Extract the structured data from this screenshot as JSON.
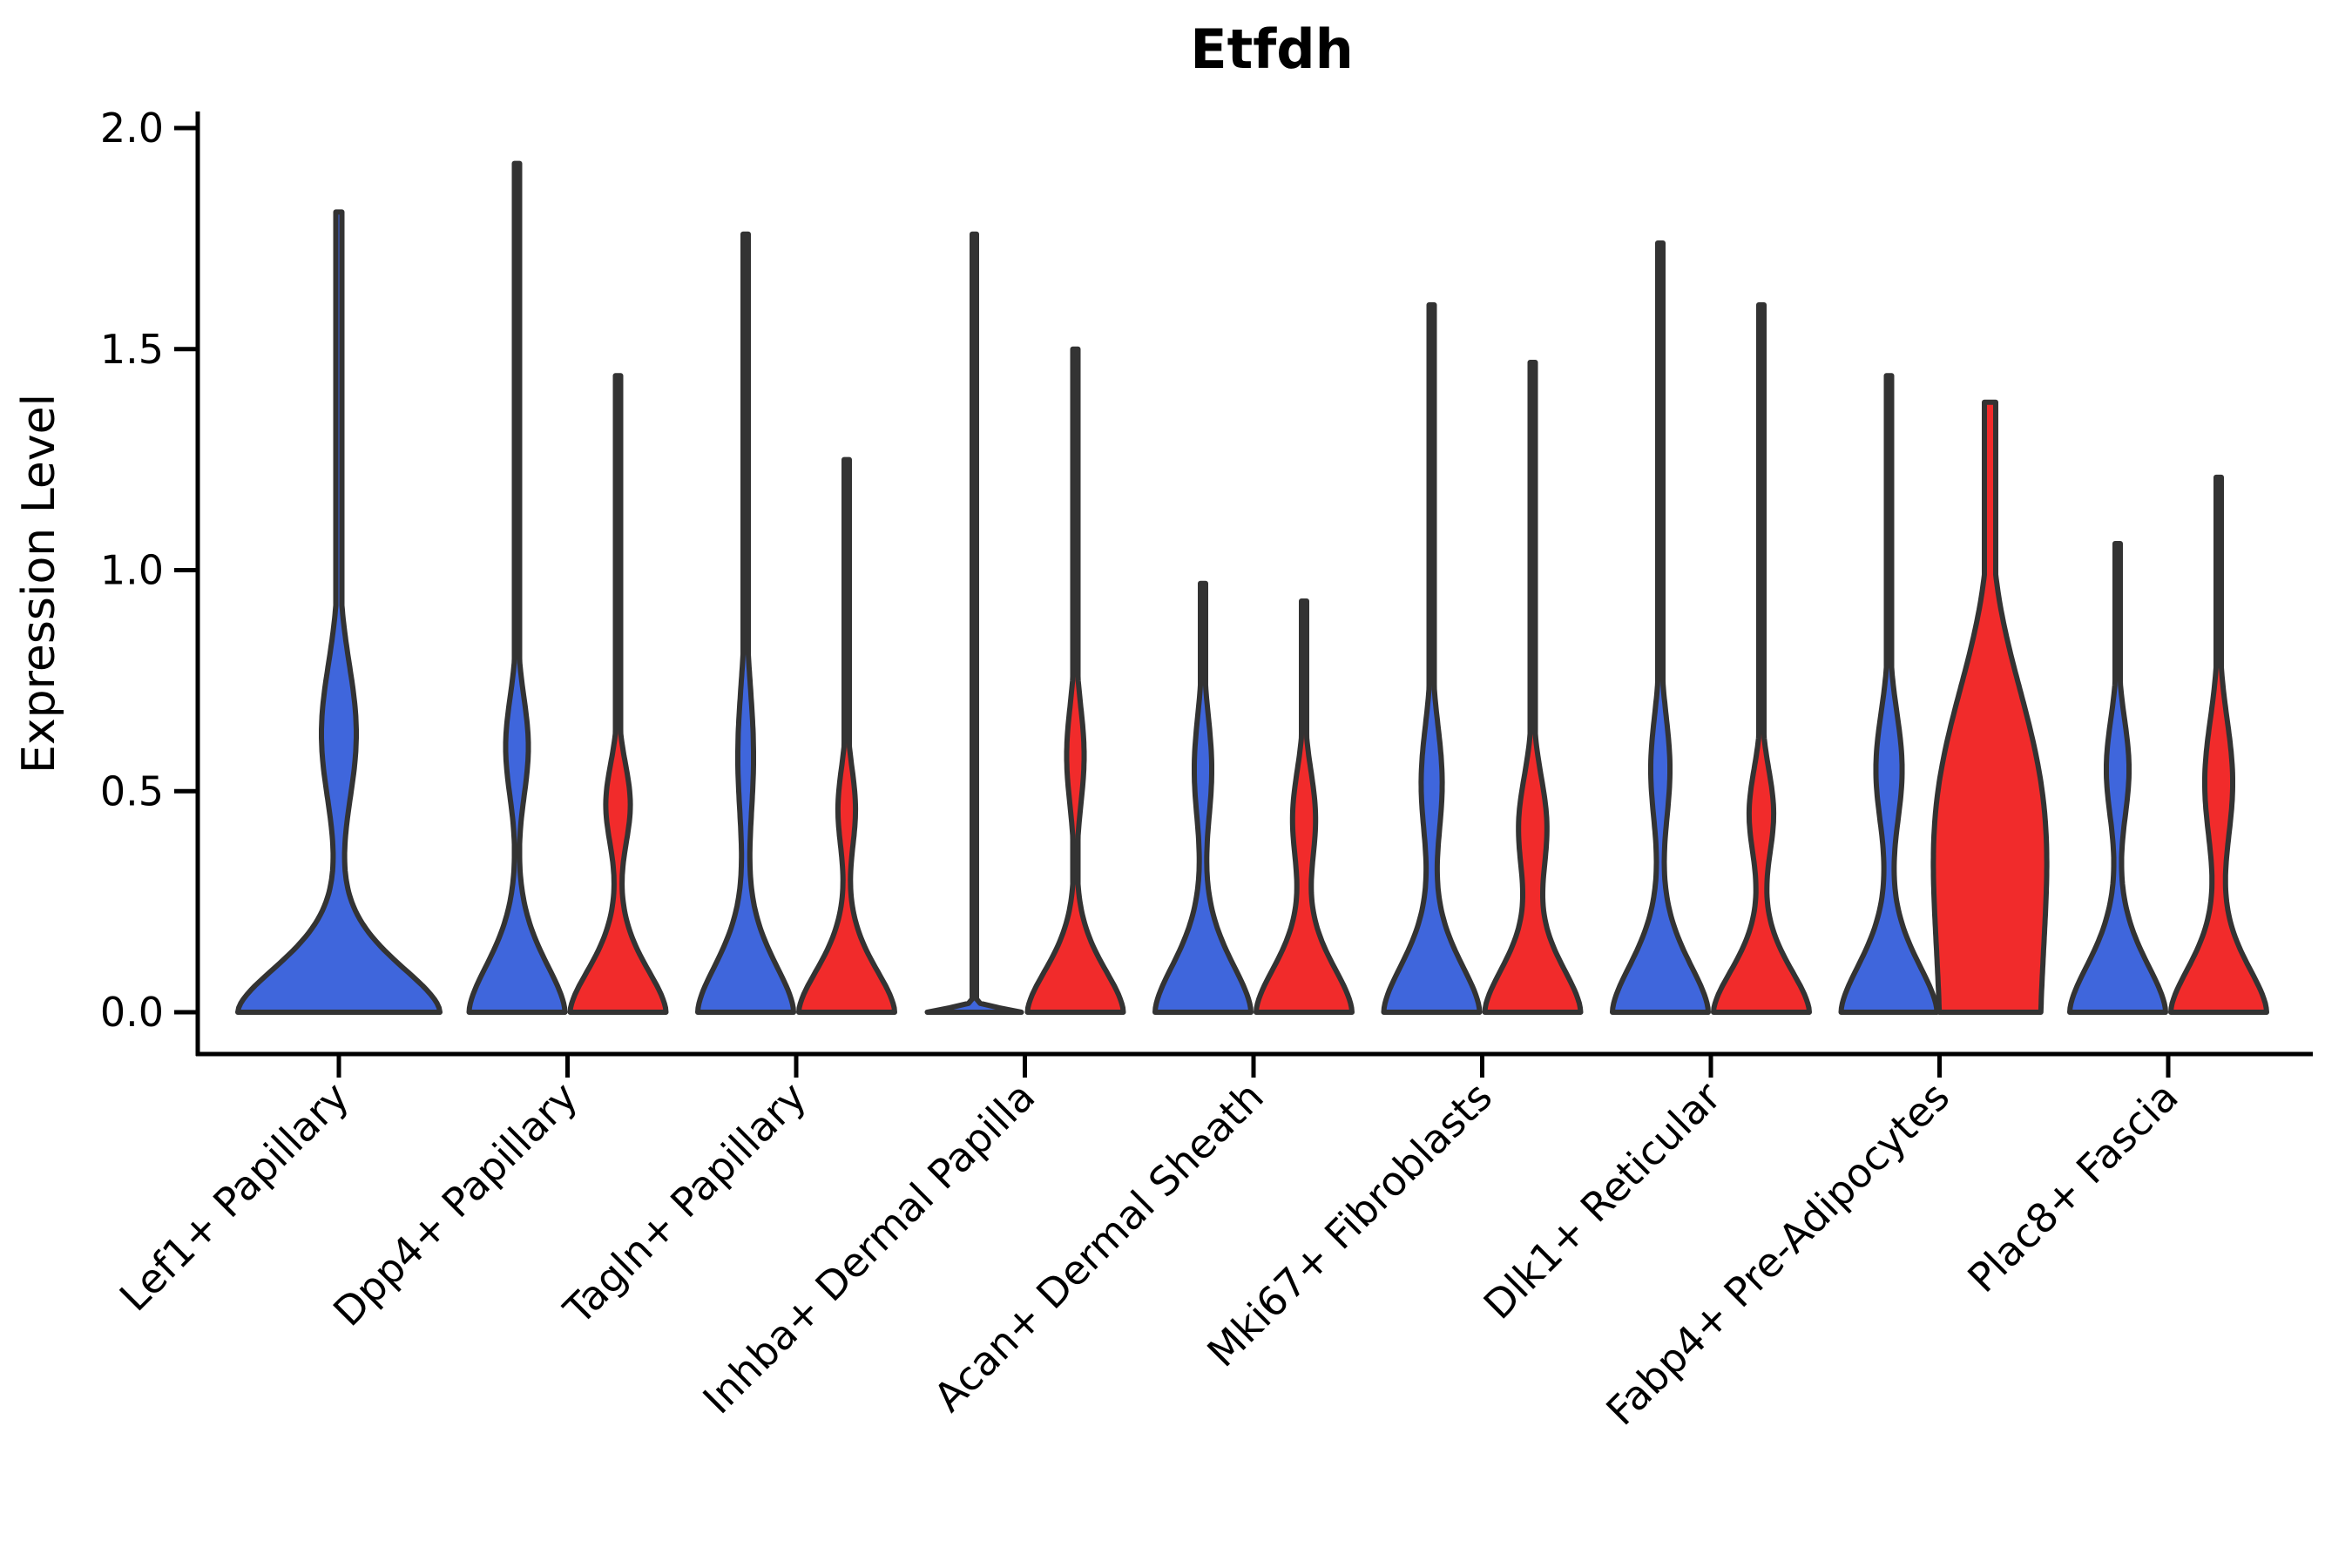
{
  "chart_data": {
    "type": "violin",
    "title": "Etfdh",
    "ylabel": "Expression Level",
    "xlabel": "",
    "ylim": [
      0.0,
      2.0
    ],
    "yticks": [
      0.0,
      0.5,
      1.0,
      1.5,
      2.0
    ],
    "ytick_labels": [
      "0.0",
      "0.5",
      "1.0",
      "1.5",
      "2.0"
    ],
    "grid": false,
    "legend_position": "none",
    "categories": [
      "Lef1+ Papillary",
      "Dpp4+ Papillary",
      "Tagln+ Papillary",
      "Inhba+ Dermal Papilla",
      "Acan+ Dermal Sheath",
      "Mki67+ Fibroblasts",
      "Dlk1+ Reticular",
      "Fabp4+ Pre-Adipocytes",
      "Plac8+ Fascia"
    ],
    "series_colors": {
      "blue": "#3F66DC",
      "red": "#F12B2B",
      "outline": "#333333"
    },
    "violins": [
      {
        "category": "Lef1+ Papillary",
        "blue": {
          "max_expr": 1.81,
          "density_peak": 0.63,
          "peak_spread": 0.22,
          "peak_halfwidth": 20,
          "base_halfwidth": 116,
          "base_falloff": 0.16,
          "base_exp": 1.7,
          "stem_halfwidth": 3.5,
          "offset": 0,
          "flat_top": false
        },
        "red": null
      },
      {
        "category": "Dpp4+ Papillary",
        "blue": {
          "max_expr": 1.92,
          "density_peak": 0.6,
          "peak_spread": 0.16,
          "peak_halfwidth": 13,
          "base_halfwidth": 55,
          "base_falloff": 0.17,
          "base_exp": 1.7,
          "stem_halfwidth": 3,
          "offset": -58,
          "flat_top": false
        },
        "red": {
          "max_expr": 1.44,
          "density_peak": 0.47,
          "peak_spread": 0.13,
          "peak_halfwidth": 14,
          "base_halfwidth": 55,
          "base_falloff": 0.15,
          "base_exp": 1.7,
          "stem_halfwidth": 3,
          "offset": 58,
          "flat_top": false
        }
      },
      {
        "category": "Tagln+ Papillary",
        "blue": {
          "max_expr": 1.76,
          "density_peak": 0.58,
          "peak_spread": 0.22,
          "peak_halfwidth": 9,
          "base_halfwidth": 55,
          "base_falloff": 0.17,
          "base_exp": 1.7,
          "stem_halfwidth": 3,
          "offset": -58,
          "flat_top": false
        },
        "red": {
          "max_expr": 1.25,
          "density_peak": 0.46,
          "peak_spread": 0.13,
          "peak_halfwidth": 10,
          "base_halfwidth": 55,
          "base_falloff": 0.15,
          "base_exp": 1.7,
          "stem_halfwidth": 3,
          "offset": 58,
          "flat_top": false
        }
      },
      {
        "category": "Inhba+ Dermal Papilla",
        "blue": {
          "max_expr": 1.76,
          "density_peak": 0.0,
          "peak_spread": 0.1,
          "peak_halfwidth": 0,
          "base_halfwidth": 54,
          "base_falloff": 0.013,
          "base_exp": 1.7,
          "stem_halfwidth": 2.5,
          "offset": -58,
          "flat_top": false
        },
        "red": {
          "max_expr": 1.5,
          "density_peak": 0.58,
          "peak_spread": 0.16,
          "peak_halfwidth": 10,
          "base_halfwidth": 55,
          "base_falloff": 0.15,
          "base_exp": 1.7,
          "stem_halfwidth": 3,
          "offset": 58,
          "flat_top": false
        }
      },
      {
        "category": "Acan+ Dermal Sheath",
        "blue": {
          "max_expr": 0.97,
          "density_peak": 0.55,
          "peak_spread": 0.17,
          "peak_halfwidth": 10,
          "base_halfwidth": 55,
          "base_falloff": 0.17,
          "base_exp": 1.7,
          "stem_halfwidth": 3,
          "offset": -58,
          "flat_top": false
        },
        "red": {
          "max_expr": 0.93,
          "density_peak": 0.44,
          "peak_spread": 0.15,
          "peak_halfwidth": 13,
          "base_halfwidth": 55,
          "base_falloff": 0.16,
          "base_exp": 1.7,
          "stem_halfwidth": 3,
          "offset": 58,
          "flat_top": false
        }
      },
      {
        "category": "Mki67+ Fibroblasts",
        "blue": {
          "max_expr": 1.6,
          "density_peak": 0.52,
          "peak_spread": 0.18,
          "peak_halfwidth": 12,
          "base_halfwidth": 55,
          "base_falloff": 0.17,
          "base_exp": 1.7,
          "stem_halfwidth": 3,
          "offset": -58,
          "flat_top": false
        },
        "red": {
          "max_expr": 1.47,
          "density_peak": 0.42,
          "peak_spread": 0.16,
          "peak_halfwidth": 16,
          "base_halfwidth": 55,
          "base_falloff": 0.16,
          "base_exp": 1.7,
          "stem_halfwidth": 3,
          "offset": 58,
          "flat_top": false
        }
      },
      {
        "category": "Dlk1+ Reticular",
        "blue": {
          "max_expr": 1.74,
          "density_peak": 0.55,
          "peak_spread": 0.17,
          "peak_halfwidth": 11,
          "base_halfwidth": 55,
          "base_falloff": 0.17,
          "base_exp": 1.7,
          "stem_halfwidth": 3,
          "offset": -58,
          "flat_top": false
        },
        "red": {
          "max_expr": 1.6,
          "density_peak": 0.45,
          "peak_spread": 0.14,
          "peak_halfwidth": 14,
          "base_halfwidth": 55,
          "base_falloff": 0.15,
          "base_exp": 1.7,
          "stem_halfwidth": 3,
          "offset": 58,
          "flat_top": false
        }
      },
      {
        "category": "Fabp4+ Pre-Adipocytes",
        "blue": {
          "max_expr": 1.44,
          "density_peak": 0.55,
          "peak_spread": 0.18,
          "peak_halfwidth": 15,
          "base_halfwidth": 55,
          "base_falloff": 0.17,
          "base_exp": 1.7,
          "stem_halfwidth": 3,
          "offset": -58,
          "flat_top": false
        },
        "red": {
          "max_expr": 1.38,
          "density_peak": 0.45,
          "peak_spread": 0.35,
          "peak_halfwidth": 12,
          "base_halfwidth": 56,
          "base_falloff": 0.8,
          "base_exp": 4,
          "stem_halfwidth": 6.5,
          "offset": 58,
          "flat_top": true
        }
      },
      {
        "category": "Plac8+ Fascia",
        "blue": {
          "max_expr": 1.06,
          "density_peak": 0.55,
          "peak_spread": 0.16,
          "peak_halfwidth": 13,
          "base_halfwidth": 55,
          "base_falloff": 0.17,
          "base_exp": 1.7,
          "stem_halfwidth": 3,
          "offset": -58,
          "flat_top": false
        },
        "red": {
          "max_expr": 1.21,
          "density_peak": 0.52,
          "peak_spread": 0.2,
          "peak_halfwidth": 16,
          "base_halfwidth": 55,
          "base_falloff": 0.16,
          "base_exp": 1.7,
          "stem_halfwidth": 3,
          "offset": 58,
          "flat_top": false
        }
      }
    ]
  }
}
